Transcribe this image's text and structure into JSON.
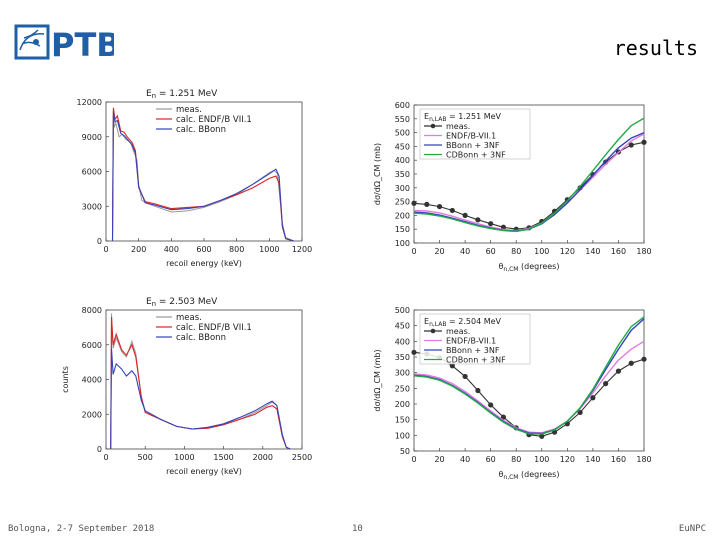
{
  "header": {
    "logo_text": "PTB",
    "title": "results"
  },
  "footer": {
    "left": "Bologna, 2-7 September 2018",
    "center": "10",
    "right": "EuNPC"
  },
  "colors": {
    "meas": "#999999",
    "endf": "#d22",
    "bbonn": "#3344bb",
    "cdbonn": "#22aa44",
    "meas_points": "#333333",
    "endf_angle": "#e07be0",
    "logo": "#1f5fa6"
  },
  "chart_data": [
    {
      "type": "line",
      "title": "E_n = 1.251 MeV",
      "title_main": "E",
      "title_sub": "n",
      "title_rest": " = 1.251 MeV",
      "xlabel": "recoil energy (keV)",
      "ylabel": "",
      "xlim": [
        0,
        1200
      ],
      "ylim": [
        0,
        12000
      ],
      "xticks": [
        0,
        200,
        400,
        600,
        800,
        1000,
        1200
      ],
      "yticks": [
        0,
        3000,
        6000,
        9000,
        12000
      ],
      "legend": [
        "meas.",
        "calc. ENDF/B VII.1",
        "calc. BBonn"
      ],
      "series": [
        {
          "name": "meas.",
          "points": [
            [
              40,
              0
            ],
            [
              45,
              11000
            ],
            [
              50,
              9800
            ],
            [
              60,
              10200
            ],
            [
              80,
              9000
            ],
            [
              100,
              9200
            ],
            [
              120,
              8800
            ],
            [
              150,
              8500
            ],
            [
              170,
              7700
            ],
            [
              190,
              7000
            ],
            [
              200,
              4800
            ],
            [
              220,
              3500
            ],
            [
              260,
              3200
            ],
            [
              300,
              3000
            ],
            [
              400,
              2500
            ],
            [
              500,
              2600
            ],
            [
              600,
              2900
            ],
            [
              700,
              3400
            ],
            [
              800,
              4000
            ],
            [
              900,
              4900
            ],
            [
              1000,
              5900
            ],
            [
              1030,
              6100
            ],
            [
              1050,
              5800
            ],
            [
              1080,
              1500
            ],
            [
              1100,
              300
            ],
            [
              1150,
              0
            ]
          ]
        },
        {
          "name": "calc. ENDF/B VII.1",
          "points": [
            [
              40,
              0
            ],
            [
              45,
              11500
            ],
            [
              55,
              10500
            ],
            [
              70,
              10800
            ],
            [
              90,
              9500
            ],
            [
              110,
              9400
            ],
            [
              130,
              9000
            ],
            [
              160,
              8500
            ],
            [
              180,
              7800
            ],
            [
              200,
              4600
            ],
            [
              240,
              3400
            ],
            [
              300,
              3200
            ],
            [
              400,
              2800
            ],
            [
              500,
              2900
            ],
            [
              600,
              3000
            ],
            [
              700,
              3500
            ],
            [
              800,
              4000
            ],
            [
              900,
              4600
            ],
            [
              1000,
              5400
            ],
            [
              1040,
              5600
            ],
            [
              1060,
              5000
            ],
            [
              1080,
              1200
            ],
            [
              1100,
              200
            ],
            [
              1150,
              0
            ]
          ]
        },
        {
          "name": "calc. BBonn",
          "points": [
            [
              40,
              0
            ],
            [
              45,
              11200
            ],
            [
              55,
              10300
            ],
            [
              70,
              10400
            ],
            [
              90,
              9300
            ],
            [
              110,
              9100
            ],
            [
              130,
              8800
            ],
            [
              160,
              8300
            ],
            [
              180,
              7600
            ],
            [
              200,
              4700
            ],
            [
              240,
              3300
            ],
            [
              300,
              3100
            ],
            [
              400,
              2700
            ],
            [
              500,
              2800
            ],
            [
              600,
              3000
            ],
            [
              700,
              3500
            ],
            [
              800,
              4100
            ],
            [
              900,
              4900
            ],
            [
              1000,
              5800
            ],
            [
              1040,
              6200
            ],
            [
              1060,
              5600
            ],
            [
              1080,
              1300
            ],
            [
              1100,
              200
            ],
            [
              1150,
              0
            ]
          ]
        }
      ]
    },
    {
      "type": "line",
      "title": "E_n = 2.503 MeV",
      "title_main": "E",
      "title_sub": "n",
      "title_rest": " = 2.503 MeV",
      "xlabel": "recoil energy (keV)",
      "ylabel": "counts",
      "xlim": [
        0,
        2500
      ],
      "ylim": [
        0,
        8000
      ],
      "xticks": [
        0,
        500,
        1000,
        1500,
        2000,
        2500
      ],
      "yticks": [
        0,
        2000,
        4000,
        6000,
        8000
      ],
      "legend": [
        "meas.",
        "calc. ENDF/B VII.1",
        "calc. BBonn"
      ],
      "series": [
        {
          "name": "meas.",
          "points": [
            [
              60,
              0
            ],
            [
              70,
              7800
            ],
            [
              90,
              5800
            ],
            [
              130,
              6400
            ],
            [
              200,
              5600
            ],
            [
              260,
              5300
            ],
            [
              330,
              6200
            ],
            [
              380,
              5500
            ],
            [
              450,
              3000
            ],
            [
              500,
              2200
            ],
            [
              700,
              1700
            ],
            [
              900,
              1300
            ],
            [
              1100,
              1150
            ],
            [
              1300,
              1200
            ],
            [
              1500,
              1400
            ],
            [
              1700,
              1700
            ],
            [
              1900,
              2100
            ],
            [
              2050,
              2500
            ],
            [
              2120,
              2700
            ],
            [
              2180,
              2500
            ],
            [
              2250,
              800
            ],
            [
              2300,
              100
            ],
            [
              2350,
              0
            ]
          ]
        },
        {
          "name": "calc. ENDF/B VII.1",
          "points": [
            [
              60,
              0
            ],
            [
              70,
              7600
            ],
            [
              90,
              6000
            ],
            [
              130,
              6600
            ],
            [
              200,
              5700
            ],
            [
              260,
              5400
            ],
            [
              330,
              6000
            ],
            [
              380,
              5300
            ],
            [
              450,
              3000
            ],
            [
              500,
              2100
            ],
            [
              700,
              1700
            ],
            [
              900,
              1300
            ],
            [
              1100,
              1150
            ],
            [
              1300,
              1200
            ],
            [
              1500,
              1400
            ],
            [
              1700,
              1700
            ],
            [
              1900,
              2000
            ],
            [
              2050,
              2400
            ],
            [
              2120,
              2500
            ],
            [
              2180,
              2300
            ],
            [
              2250,
              700
            ],
            [
              2300,
              100
            ],
            [
              2350,
              0
            ]
          ]
        },
        {
          "name": "calc. BBonn",
          "points": [
            [
              60,
              0
            ],
            [
              70,
              5800
            ],
            [
              90,
              4300
            ],
            [
              130,
              4900
            ],
            [
              200,
              4600
            ],
            [
              260,
              4200
            ],
            [
              330,
              4500
            ],
            [
              380,
              4200
            ],
            [
              450,
              2800
            ],
            [
              500,
              2200
            ],
            [
              700,
              1700
            ],
            [
              900,
              1300
            ],
            [
              1100,
              1150
            ],
            [
              1300,
              1250
            ],
            [
              1500,
              1450
            ],
            [
              1700,
              1800
            ],
            [
              1900,
              2200
            ],
            [
              2050,
              2600
            ],
            [
              2120,
              2750
            ],
            [
              2180,
              2500
            ],
            [
              2250,
              800
            ],
            [
              2300,
              100
            ],
            [
              2350,
              0
            ]
          ]
        }
      ]
    },
    {
      "type": "line",
      "title": "E_n,LAB = 1.251 MeV",
      "title_main": "E",
      "title_sub": "n,LAB",
      "title_rest": " = 1.251 MeV",
      "xlabel_main": "θ",
      "xlabel_sub": "n,CM",
      "xlabel_rest": " (degrees)",
      "ylabel": "dσ/dΩ_CM (mb)",
      "xlim": [
        0,
        180
      ],
      "ylim": [
        100,
        600
      ],
      "xticks": [
        0,
        20,
        40,
        60,
        80,
        100,
        120,
        140,
        160,
        180
      ],
      "yticks": [
        100,
        150,
        200,
        250,
        300,
        350,
        400,
        450,
        500,
        550,
        600
      ],
      "legend": [
        "meas.",
        "ENDF/B-VII.1",
        "BBonn + 3NF",
        "CDBonn + 3NF"
      ],
      "series": [
        {
          "name": "meas.",
          "x": [
            0,
            10,
            20,
            30,
            40,
            50,
            60,
            70,
            80,
            90,
            100,
            110,
            120,
            130,
            140,
            150,
            160,
            170,
            180
          ],
          "values": [
            244,
            240,
            232,
            218,
            200,
            184,
            170,
            157,
            150,
            155,
            178,
            215,
            257,
            300,
            348,
            393,
            430,
            455,
            465
          ]
        },
        {
          "name": "ENDF/B-VII.1",
          "x": [
            0,
            10,
            20,
            30,
            40,
            50,
            60,
            70,
            80,
            90,
            100,
            110,
            120,
            130,
            140,
            150,
            160,
            170,
            180
          ],
          "values": [
            218,
            216,
            209,
            197,
            183,
            170,
            158,
            149,
            145,
            153,
            172,
            205,
            245,
            292,
            338,
            385,
            428,
            470,
            495
          ]
        },
        {
          "name": "BBonn + 3NF",
          "x": [
            0,
            10,
            20,
            30,
            40,
            50,
            60,
            70,
            80,
            90,
            100,
            110,
            120,
            130,
            140,
            150,
            160,
            170,
            180
          ],
          "values": [
            212,
            209,
            201,
            190,
            177,
            164,
            154,
            146,
            143,
            150,
            170,
            203,
            245,
            293,
            345,
            397,
            445,
            480,
            500
          ]
        },
        {
          "name": "CDBonn + 3NF",
          "x": [
            0,
            10,
            20,
            30,
            40,
            50,
            60,
            70,
            80,
            90,
            100,
            110,
            120,
            130,
            140,
            150,
            160,
            170,
            180
          ],
          "values": [
            208,
            205,
            198,
            187,
            174,
            162,
            152,
            145,
            142,
            150,
            172,
            208,
            253,
            305,
            362,
            420,
            475,
            525,
            552
          ]
        }
      ]
    },
    {
      "type": "line",
      "title": "E_n,LAB = 2.504 MeV",
      "title_main": "E",
      "title_sub": "n,LAB",
      "title_rest": " = 2.504 MeV",
      "xlabel_main": "θ",
      "xlabel_sub": "n,CM",
      "xlabel_rest": " (degrees)",
      "ylabel": "dσ/dΩ_CM (mb)",
      "xlim": [
        0,
        180
      ],
      "ylim": [
        50,
        500
      ],
      "xticks": [
        0,
        20,
        40,
        60,
        80,
        100,
        120,
        140,
        160,
        180
      ],
      "yticks": [
        50,
        100,
        150,
        200,
        250,
        300,
        350,
        400,
        450,
        500
      ],
      "legend": [
        "meas.",
        "ENDF/B-VII.1",
        "BBonn + 3NF",
        "CDBonn + 3NF"
      ],
      "series": [
        {
          "name": "meas.",
          "x": [
            0,
            10,
            20,
            30,
            40,
            50,
            60,
            70,
            80,
            90,
            100,
            110,
            120,
            130,
            140,
            150,
            160,
            170,
            180
          ],
          "values": [
            365,
            360,
            348,
            322,
            288,
            243,
            197,
            158,
            124,
            102,
            97,
            110,
            137,
            173,
            220,
            265,
            305,
            330,
            343
          ]
        },
        {
          "name": "ENDF/B-VII.1",
          "x": [
            0,
            10,
            20,
            30,
            40,
            50,
            60,
            70,
            80,
            90,
            100,
            110,
            120,
            130,
            140,
            150,
            160,
            170,
            180
          ],
          "values": [
            296,
            293,
            283,
            265,
            240,
            210,
            178,
            148,
            124,
            110,
            108,
            120,
            145,
            185,
            235,
            290,
            340,
            375,
            400
          ]
        },
        {
          "name": "BBonn + 3NF",
          "x": [
            0,
            10,
            20,
            30,
            40,
            50,
            60,
            70,
            80,
            90,
            100,
            110,
            120,
            130,
            140,
            150,
            160,
            170,
            180
          ],
          "values": [
            292,
            288,
            278,
            259,
            234,
            205,
            173,
            144,
            121,
            107,
            106,
            118,
            145,
            187,
            243,
            310,
            375,
            435,
            472
          ]
        },
        {
          "name": "CDBonn + 3NF",
          "x": [
            0,
            10,
            20,
            30,
            40,
            50,
            60,
            70,
            80,
            90,
            100,
            110,
            120,
            130,
            140,
            150,
            160,
            170,
            180
          ],
          "values": [
            290,
            286,
            276,
            257,
            232,
            203,
            171,
            142,
            119,
            105,
            104,
            117,
            145,
            188,
            247,
            318,
            388,
            447,
            478
          ]
        }
      ]
    }
  ]
}
